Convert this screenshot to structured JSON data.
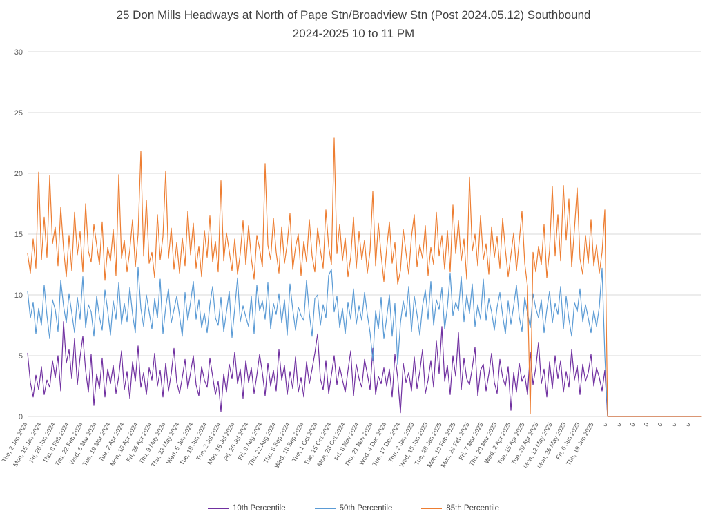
{
  "title": {
    "line1": "25 Don Mills Headways at North of Pape Stn/Broadview Stn (Post 2024.05.12) Southbound",
    "line2": "2024-2025 10 to 11 PM"
  },
  "colors": {
    "grid": "#D9D9D9",
    "axis_text": "#595959",
    "title_text": "#404040"
  },
  "chart_data": {
    "type": "line",
    "title": "25 Don Mills Headways at North of Pape Stn/Broadview Stn (Post 2024.05.12) Southbound 2024-2025 10 to 11 PM",
    "xlabel": "",
    "ylabel": "",
    "ylim": [
      0,
      30
    ],
    "y_ticks": [
      0,
      5,
      10,
      15,
      20,
      25,
      30
    ],
    "grid": true,
    "legend_position": "bottom",
    "points_per_tick": 5,
    "x_tick_labels": [
      "Tue, 2 Jan 2024",
      "Mon, 15 Jan 2024",
      "Fri, 26 Jan 2024",
      "Thu, 8 Feb 2024",
      "Thu, 22 Feb 2024",
      "Wed, 6 Mar 2024",
      "Tue, 19 Mar 2024",
      "Tue, 2 Apr 2024",
      "Mon, 15 Apr 2024",
      "Fri, 26 Apr 2024",
      "Thu, 9 May 2024",
      "Thu, 23 May 2024",
      "Wed, 5 Jun 2024",
      "Tue, 18 Jun 2024",
      "Tue, 2 Jul 2024",
      "Mon, 15 Jul 2024",
      "Fri, 26 Jul 2024",
      "Fri, 9 Aug 2024",
      "Thu, 22 Aug 2024",
      "Thu, 5 Sep 2024",
      "Wed, 18 Sep 2024",
      "Tue, 1 Oct 2024",
      "Tue, 15 Oct 2024",
      "Mon, 28 Oct 2024",
      "Fri, 8 Nov 2024",
      "Thu, 21 Nov 2024",
      "Wed, 4 Dec 2024",
      "Tue, 17 Dec 2024",
      "Thu, 2 Jan 2025",
      "Wed, 15 Jan 2025",
      "Tue, 28 Jan 2025",
      "Mon, 10 Feb 2025",
      "Mon, 24 Feb 2025",
      "Fri, 7 Mar 2025",
      "Thu, 20 Mar 2025",
      "Wed, 2 Apr 2025",
      "Tue, 15 Apr 2025",
      "Tue, 29 Apr 2025",
      "Mon, 12 May 2025",
      "Mon, 26 May 2025",
      "Fri, 6 Jun 2025",
      "Thu, 19 Jun 2025",
      "0",
      "0",
      "0",
      "0",
      "0",
      "0",
      "0"
    ],
    "series": [
      {
        "name": "10th Percentile",
        "color": "#7030A0",
        "values": [
          5.2,
          2.8,
          1.6,
          3.4,
          2.2,
          4.1,
          1.8,
          3.0,
          2.4,
          4.6,
          3.2,
          5.0,
          2.1,
          7.8,
          4.4,
          5.5,
          3.1,
          6.4,
          2.6,
          4.9,
          6.6,
          3.8,
          2.0,
          5.1,
          0.9,
          3.5,
          2.3,
          4.8,
          1.6,
          3.9,
          2.7,
          4.2,
          1.9,
          3.3,
          5.4,
          2.2,
          3.7,
          1.5,
          4.5,
          2.9,
          5.8,
          2.4,
          3.6,
          1.8,
          4.0,
          3.0,
          5.2,
          2.5,
          3.8,
          1.6,
          4.4,
          2.1,
          3.5,
          5.6,
          2.8,
          1.9,
          3.2,
          4.7,
          2.3,
          3.6,
          5.0,
          2.6,
          1.7,
          4.1,
          3.0,
          2.4,
          4.8,
          3.3,
          1.8,
          2.9,
          0.4,
          3.5,
          2.0,
          4.3,
          3.1,
          5.3,
          2.7,
          3.9,
          1.5,
          4.6,
          2.8,
          4.0,
          1.9,
          3.4,
          5.1,
          3.6,
          1.7,
          4.4,
          2.5,
          3.8,
          2.1,
          5.5,
          3.0,
          4.2,
          1.8,
          3.7,
          2.3,
          4.9,
          2.0,
          3.2,
          1.6,
          4.5,
          2.7,
          3.9,
          5.2,
          6.8,
          3.1,
          2.2,
          4.6,
          1.9,
          3.4,
          5.0,
          2.6,
          4.1,
          3.0,
          2.0,
          3.8,
          5.4,
          1.7,
          4.3,
          3.1,
          2.4,
          4.7,
          3.5,
          2.2,
          5.6,
          1.8,
          3.3,
          2.7,
          4.0,
          2.5,
          3.9,
          1.6,
          5.1,
          3.2,
          0.3,
          4.4,
          2.8,
          3.6,
          2.1,
          4.9,
          2.3,
          3.7,
          5.5,
          1.9,
          3.0,
          4.6,
          2.4,
          6.2,
          3.5,
          7.4,
          2.9,
          4.2,
          1.8,
          5.0,
          3.3,
          6.9,
          2.2,
          4.8,
          3.1,
          2.6,
          4.0,
          5.7,
          1.7,
          3.8,
          4.3,
          2.1,
          3.5,
          5.2,
          2.8,
          1.9,
          4.7,
          3.2,
          2.5,
          4.1,
          0.5,
          3.6,
          2.0,
          4.4,
          2.9,
          3.4,
          1.8,
          5.3,
          2.6,
          4.0,
          6.1,
          2.7,
          3.9,
          1.6,
          4.5,
          2.3,
          5.0,
          3.1,
          4.6,
          2.0,
          3.7,
          2.4,
          5.5,
          3.0,
          4.2,
          1.8,
          4.3,
          2.9,
          3.6,
          5.1,
          2.5,
          4.0,
          3.2,
          2.1,
          3.8,
          0,
          0,
          0,
          0,
          0,
          0,
          0,
          0,
          0,
          0,
          0,
          0,
          0,
          0,
          0,
          0,
          0,
          0,
          0,
          0,
          0,
          0,
          0,
          0,
          0,
          0,
          0,
          0,
          0,
          0,
          0,
          0,
          0,
          0,
          0
        ]
      },
      {
        "name": "50th Percentile",
        "color": "#5B9BD5",
        "values": [
          10.3,
          8.1,
          9.4,
          6.8,
          8.9,
          7.5,
          10.8,
          8.3,
          6.4,
          9.6,
          8.8,
          7.0,
          11.2,
          9.1,
          7.7,
          10.1,
          8.5,
          6.9,
          9.8,
          8.0,
          11.5,
          7.3,
          9.2,
          8.6,
          6.6,
          9.9,
          8.2,
          7.1,
          10.4,
          8.7,
          6.7,
          9.5,
          8.0,
          11.0,
          7.6,
          9.3,
          7.8,
          10.6,
          8.4,
          6.9,
          12.3,
          8.9,
          7.4,
          10.0,
          8.6,
          7.2,
          9.7,
          8.1,
          11.3,
          6.8,
          9.0,
          10.5,
          7.7,
          8.8,
          9.9,
          8.3,
          6.6,
          10.2,
          7.9,
          9.4,
          11.1,
          8.0,
          9.6,
          7.3,
          8.5,
          6.9,
          9.2,
          10.7,
          8.1,
          7.5,
          9.8,
          7.0,
          8.6,
          10.3,
          6.5,
          8.9,
          11.4,
          7.8,
          9.1,
          8.2,
          7.4,
          9.9,
          6.8,
          10.8,
          8.7,
          9.5,
          8.0,
          11.0,
          7.2,
          9.3,
          8.4,
          10.1,
          7.7,
          9.6,
          6.7,
          10.9,
          8.8,
          7.1,
          9.0,
          8.3,
          7.9,
          11.2,
          8.5,
          6.6,
          9.7,
          10.0,
          7.5,
          9.2,
          8.1,
          11.6,
          12.1,
          8.6,
          9.9,
          7.3,
          8.9,
          6.8,
          9.4,
          8.0,
          10.5,
          7.6,
          9.1,
          7.9,
          10.2,
          8.4,
          6.9,
          4.6,
          8.7,
          7.2,
          9.8,
          6.4,
          8.1,
          10.0,
          6.6,
          9.3,
          4.3,
          7.7,
          9.5,
          8.2,
          10.7,
          7.0,
          9.9,
          8.4,
          6.7,
          9.1,
          10.4,
          8.0,
          11.1,
          7.5,
          9.6,
          8.8,
          10.6,
          7.2,
          9.0,
          11.8,
          8.3,
          9.4,
          8.7,
          11.5,
          7.8,
          10.0,
          8.5,
          10.9,
          7.4,
          9.2,
          8.0,
          11.3,
          7.9,
          9.7,
          8.6,
          7.1,
          9.0,
          10.2,
          8.3,
          6.8,
          9.5,
          7.6,
          9.1,
          10.8,
          8.2,
          7.0,
          9.8,
          8.5,
          7.3,
          10.1,
          8.9,
          8.1,
          9.6,
          6.9,
          8.8,
          10.3,
          7.7,
          9.3,
          8.4,
          10.7,
          7.2,
          9.9,
          8.0,
          6.6,
          9.4,
          8.6,
          10.5,
          7.8,
          9.2,
          8.1,
          6.9,
          8.7,
          7.4,
          9.0,
          12.2,
          5.0,
          0,
          0,
          0,
          0,
          0,
          0,
          0,
          0,
          0,
          0,
          0,
          0,
          0,
          0,
          0,
          0,
          0,
          0,
          0,
          0,
          0,
          0,
          0,
          0,
          0,
          0,
          0,
          0,
          0,
          0,
          0,
          0,
          0,
          0,
          0
        ]
      },
      {
        "name": "85th Percentile",
        "color": "#ED7D31",
        "values": [
          13.4,
          11.8,
          14.6,
          12.2,
          20.1,
          12.9,
          16.4,
          13.1,
          19.8,
          14.2,
          15.6,
          12.4,
          17.2,
          13.8,
          11.5,
          14.9,
          12.0,
          16.8,
          13.3,
          15.2,
          11.9,
          17.5,
          13.6,
          12.7,
          15.8,
          14.1,
          12.5,
          16.0,
          11.2,
          13.9,
          12.8,
          15.4,
          11.6,
          19.9,
          13.0,
          14.5,
          11.9,
          13.7,
          16.2,
          12.3,
          15.0,
          21.8,
          13.2,
          17.8,
          12.6,
          13.5,
          11.4,
          16.6,
          12.9,
          14.8,
          20.2,
          13.0,
          15.5,
          12.1,
          14.3,
          11.8,
          14.7,
          12.4,
          16.9,
          13.3,
          15.9,
          12.2,
          14.0,
          11.5,
          15.3,
          13.1,
          16.5,
          12.7,
          14.4,
          11.9,
          19.4,
          12.8,
          15.1,
          13.6,
          12.0,
          14.6,
          11.7,
          13.4,
          16.1,
          12.5,
          15.7,
          13.0,
          11.3,
          14.9,
          13.8,
          12.3,
          20.8,
          14.1,
          12.9,
          16.3,
          13.5,
          11.8,
          15.6,
          12.6,
          14.2,
          16.7,
          12.1,
          13.9,
          15.0,
          11.6,
          14.4,
          12.7,
          16.2,
          13.2,
          11.9,
          15.5,
          13.7,
          12.2,
          17.0,
          14.0,
          12.5,
          22.9,
          13.4,
          15.8,
          12.8,
          14.7,
          11.5,
          13.1,
          16.4,
          12.2,
          15.2,
          12.9,
          14.5,
          11.8,
          13.6,
          18.5,
          12.4,
          15.9,
          13.3,
          11.1,
          13.8,
          16.0,
          12.6,
          14.3,
          10.9,
          12.0,
          15.4,
          13.5,
          11.7,
          14.8,
          16.6,
          12.3,
          14.1,
          13.0,
          15.7,
          11.6,
          13.9,
          12.5,
          16.8,
          13.2,
          14.9,
          12.1,
          15.3,
          11.9,
          17.4,
          13.4,
          16.1,
          12.8,
          14.6,
          11.3,
          19.7,
          13.6,
          15.0,
          12.4,
          16.5,
          12.9,
          14.2,
          11.7,
          15.6,
          13.1,
          14.8,
          12.2,
          16.3,
          13.7,
          11.5,
          13.3,
          15.1,
          12.0,
          14.4,
          16.9,
          12.6,
          10.7,
          0.2,
          13.5,
          11.9,
          14.0,
          12.5,
          15.8,
          11.4,
          13.7,
          18.9,
          13.2,
          16.6,
          12.8,
          19.0,
          14.5,
          17.9,
          12.3,
          15.4,
          18.8,
          13.0,
          11.7,
          14.9,
          12.6,
          16.2,
          12.4,
          14.1,
          11.8,
          13.5,
          17.0,
          0,
          0,
          0,
          0,
          0,
          0,
          0,
          0,
          0,
          0,
          0,
          0,
          0,
          0,
          0,
          0,
          0,
          0,
          0,
          0,
          0,
          0,
          0,
          0,
          0,
          0,
          0,
          0,
          0,
          0,
          0,
          0,
          0,
          0,
          0
        ]
      }
    ]
  }
}
